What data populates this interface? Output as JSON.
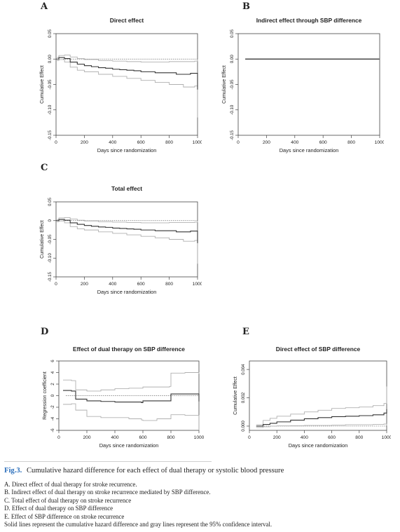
{
  "panels": [
    {
      "letter": "A",
      "chart_data": {
        "type": "line",
        "title": "Direct effect",
        "xlabel": "Days since randomization",
        "ylabel": "Cumulative Effect",
        "xlim": [
          0,
          1000
        ],
        "ylim": [
          -0.15,
          0.05
        ],
        "xticks": [
          "0",
          "200",
          "400",
          "600",
          "800",
          "1000"
        ],
        "yticks": [
          "-0.15",
          "-0.10",
          "-0.05",
          "0.00",
          "0.05"
        ],
        "reference_line": 0,
        "series": [
          {
            "role": "estimate",
            "style": "solid",
            "color": "#333333",
            "x": [
              0,
              20,
              60,
              100,
              150,
              200,
              250,
              300,
              350,
              400,
              450,
              500,
              550,
              600,
              650,
              700,
              750,
              800,
              850,
              900,
              950,
              980,
              1000
            ],
            "y": [
              0,
              0.003,
              0.001,
              -0.006,
              -0.01,
              -0.013,
              -0.015,
              -0.017,
              -0.018,
              -0.02,
              -0.021,
              -0.022,
              -0.023,
              -0.025,
              -0.025,
              -0.027,
              -0.027,
              -0.027,
              -0.03,
              -0.03,
              -0.028,
              -0.028,
              -0.06
            ]
          },
          {
            "role": "ci-upper",
            "style": "solid",
            "color": "#b0b0b0",
            "x": [
              0,
              20,
              60,
              100,
              150,
              200,
              300,
              400,
              500,
              600,
              700,
              800,
              900,
              980,
              1000
            ],
            "y": [
              0.003,
              0.007,
              0.008,
              0.004,
              0.001,
              -0.001,
              -0.003,
              -0.004,
              -0.005,
              -0.006,
              -0.006,
              -0.005,
              -0.005,
              -0.004,
              0.0
            ]
          },
          {
            "role": "ci-lower",
            "style": "solid",
            "color": "#b0b0b0",
            "x": [
              0,
              20,
              60,
              100,
              150,
              200,
              300,
              400,
              500,
              600,
              700,
              800,
              900,
              980,
              1000
            ],
            "y": [
              -0.003,
              -0.001,
              -0.006,
              -0.016,
              -0.022,
              -0.025,
              -0.03,
              -0.034,
              -0.038,
              -0.042,
              -0.046,
              -0.05,
              -0.055,
              -0.053,
              -0.115
            ]
          }
        ]
      }
    },
    {
      "letter": "B",
      "chart_data": {
        "type": "line",
        "title": "Indirect effect through SBP difference",
        "xlabel": "Days since randomization",
        "ylabel": "Cumulative Effect",
        "xlim": [
          0,
          1000
        ],
        "ylim": [
          -0.15,
          0.05
        ],
        "xticks": [
          "0",
          "200",
          "400",
          "600",
          "800",
          "1000"
        ],
        "yticks": [
          "-0.15",
          "-0.10",
          "-0.05",
          "0.00",
          "0.05"
        ],
        "reference_line": 0,
        "series": [
          {
            "role": "estimate",
            "style": "solid",
            "color": "#333333",
            "x": [
              50,
              200,
              400,
              600,
              800,
              1000
            ],
            "y": [
              0,
              0,
              0,
              0,
              0,
              0
            ]
          },
          {
            "role": "ci-upper",
            "style": "solid",
            "color": "#b0b0b0",
            "x": [
              50,
              200,
              400,
              600,
              800,
              1000
            ],
            "y": [
              0.0008,
              0.0008,
              0.0008,
              0.0008,
              0.0008,
              0.0008
            ]
          },
          {
            "role": "ci-lower",
            "style": "solid",
            "color": "#b0b0b0",
            "x": [
              50,
              200,
              400,
              600,
              800,
              1000
            ],
            "y": [
              -0.0008,
              -0.0008,
              -0.0008,
              -0.0008,
              -0.0008,
              -0.0008
            ]
          }
        ]
      }
    },
    {
      "letter": "C",
      "chart_data": {
        "type": "line",
        "title": "Total effect",
        "xlabel": "Days since randomization",
        "ylabel": "Cumulative Effect",
        "xlim": [
          0,
          1000
        ],
        "ylim": [
          -0.15,
          0.05
        ],
        "xticks": [
          "0",
          "200",
          "400",
          "600",
          "800",
          "1000"
        ],
        "yticks": [
          "-0.15",
          "-0.10",
          "-0.05",
          "0",
          "0.05"
        ],
        "reference_line": 0,
        "series": [
          {
            "role": "estimate",
            "style": "solid",
            "color": "#333333",
            "x": [
              0,
              20,
              60,
              100,
              150,
              200,
              250,
              300,
              350,
              400,
              450,
              500,
              550,
              600,
              650,
              700,
              750,
              800,
              850,
              900,
              950,
              980,
              1000
            ],
            "y": [
              0,
              0.003,
              0.001,
              -0.006,
              -0.01,
              -0.013,
              -0.015,
              -0.017,
              -0.018,
              -0.02,
              -0.021,
              -0.022,
              -0.023,
              -0.025,
              -0.025,
              -0.027,
              -0.027,
              -0.027,
              -0.03,
              -0.03,
              -0.028,
              -0.028,
              -0.06
            ]
          },
          {
            "role": "ci-upper",
            "style": "solid",
            "color": "#b0b0b0",
            "x": [
              0,
              20,
              60,
              100,
              150,
              200,
              300,
              400,
              500,
              600,
              700,
              800,
              900,
              980,
              1000
            ],
            "y": [
              0.003,
              0.007,
              0.008,
              0.004,
              0.001,
              -0.001,
              -0.003,
              -0.004,
              -0.005,
              -0.006,
              -0.006,
              -0.005,
              -0.005,
              -0.004,
              0.0
            ]
          },
          {
            "role": "ci-lower",
            "style": "solid",
            "color": "#b0b0b0",
            "x": [
              0,
              20,
              60,
              100,
              150,
              200,
              300,
              400,
              500,
              600,
              700,
              800,
              900,
              980,
              1000
            ],
            "y": [
              -0.003,
              -0.001,
              -0.006,
              -0.016,
              -0.022,
              -0.025,
              -0.03,
              -0.034,
              -0.038,
              -0.042,
              -0.046,
              -0.05,
              -0.055,
              -0.053,
              -0.115
            ]
          }
        ]
      }
    },
    {
      "letter": "D",
      "chart_data": {
        "type": "line",
        "title": "Effect of dual therapy on SBP difference",
        "xlabel": "Days since randomization",
        "ylabel": "Regression coefficient",
        "xlim": [
          0,
          1000
        ],
        "ylim": [
          -6,
          6
        ],
        "xticks": [
          "0",
          "200",
          "400",
          "600",
          "800",
          "1000"
        ],
        "yticks": [
          "-6",
          "-4",
          "-2",
          "0",
          "2",
          "4",
          "6"
        ],
        "reference_line": 0,
        "series": [
          {
            "role": "estimate",
            "style": "solid",
            "color": "#333333",
            "x": [
              30,
              90,
              120,
              200,
              300,
              400,
              500,
              590,
              600,
              700,
              790,
              800,
              900,
              1000
            ],
            "y": [
              0.9,
              0.8,
              -0.6,
              -0.9,
              -1.0,
              -1.1,
              -1.1,
              -1.2,
              -0.9,
              -0.9,
              -0.9,
              0.3,
              0.3,
              -1.0
            ]
          },
          {
            "role": "ci-upper",
            "style": "solid",
            "color": "#b0b0b0",
            "x": [
              30,
              90,
              120,
              200,
              300,
              400,
              500,
              600,
              700,
              790,
              800,
              900,
              1000
            ],
            "y": [
              2.7,
              2.6,
              1.0,
              0.8,
              1.0,
              1.2,
              1.3,
              1.5,
              1.5,
              1.6,
              3.9,
              4.0,
              3.8
            ]
          },
          {
            "role": "ci-lower",
            "style": "solid",
            "color": "#b0b0b0",
            "x": [
              30,
              90,
              120,
              200,
              300,
              400,
              500,
              590,
              600,
              700,
              790,
              800,
              900,
              1000
            ],
            "y": [
              -1.5,
              -1.4,
              -2.5,
              -3.6,
              -3.8,
              -3.8,
              -4.0,
              -4.2,
              -4.3,
              -4.0,
              -4.0,
              -3.3,
              -3.4,
              -6.0
            ]
          }
        ]
      }
    },
    {
      "letter": "E",
      "chart_data": {
        "type": "line",
        "title": "Direct effect of SBP difference",
        "xlabel": "Days since randomization",
        "ylabel": "Cumulative Effect",
        "xlim": [
          0,
          1000
        ],
        "ylim": [
          -0.0003,
          0.0046
        ],
        "xticks": [
          "0",
          "200",
          "400",
          "600",
          "800",
          "1000"
        ],
        "yticks": [
          "0.000",
          "0.002",
          "0.004"
        ],
        "reference_line": 0,
        "series": [
          {
            "role": "estimate",
            "style": "solid",
            "color": "#333333",
            "x": [
              50,
              100,
              150,
              200,
              300,
              400,
              500,
              600,
              700,
              800,
              900,
              980,
              1000
            ],
            "y": [
              0.0,
              0.00012,
              0.0002,
              0.0003,
              0.00042,
              0.00052,
              0.0006,
              0.00067,
              0.0007,
              0.00074,
              0.0008,
              0.00092,
              0.0012
            ]
          },
          {
            "role": "ci-upper",
            "style": "solid",
            "color": "#b0b0b0",
            "x": [
              50,
              100,
              150,
              200,
              300,
              400,
              500,
              600,
              700,
              800,
              900,
              980,
              1000
            ],
            "y": [
              0.0001,
              0.0004,
              0.00055,
              0.0007,
              0.00085,
              0.001,
              0.00112,
              0.00125,
              0.0013,
              0.00135,
              0.00145,
              0.0016,
              0.0028
            ]
          },
          {
            "role": "ci-lower",
            "style": "solid",
            "color": "#b0b0b0",
            "x": [
              50,
              100,
              150,
              200,
              300,
              400,
              500,
              600,
              700,
              800,
              900,
              980,
              1000
            ],
            "y": [
              -0.0001,
              -5e-05,
              0.0,
              2e-05,
              3e-05,
              5e-05,
              5e-05,
              7e-05,
              0.0001,
              0.0001,
              0.00012,
              0.00015,
              2e-05
            ]
          }
        ]
      }
    }
  ],
  "caption": {
    "fig_label": "Fig.3.",
    "title": "Cumulative hazard difference for each effect of dual therapy or systolic blood pressure",
    "lines": [
      "A. Direct effect of dual therapy for stroke recurrence.",
      "B. Indirect effect of dual therapy on stroke recurrence mediated by SBP difference.",
      "C. Total effect of dual therapy on stroke recurrence",
      "D. Effect of dual therapy on SBP difference",
      "E. Effect of SBP difference on stroke recurrence",
      "Solid lines represent the cumulative hazard difference and gray lines represent the 95% confidence interval."
    ]
  }
}
